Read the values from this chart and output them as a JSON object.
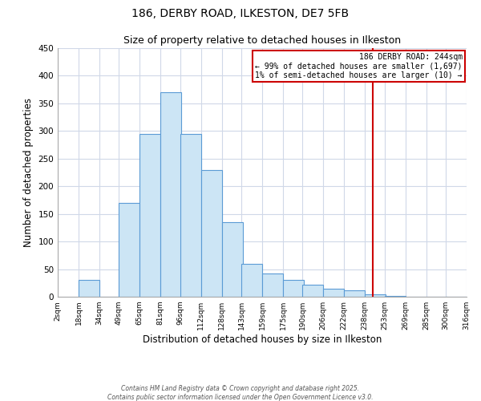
{
  "title": "186, DERBY ROAD, ILKESTON, DE7 5FB",
  "subtitle": "Size of property relative to detached houses in Ilkeston",
  "xlabel": "Distribution of detached houses by size in Ilkeston",
  "ylabel": "Number of detached properties",
  "bar_left_edges": [
    18,
    34,
    49,
    65,
    81,
    96,
    112,
    128,
    143,
    159,
    175,
    190,
    206,
    222,
    238,
    253,
    269,
    285,
    300
  ],
  "bar_heights": [
    30,
    0,
    170,
    295,
    370,
    295,
    230,
    135,
    60,
    42,
    30,
    22,
    14,
    11,
    5,
    1,
    0,
    0,
    0
  ],
  "bin_width": 16,
  "tick_labels": [
    "2sqm",
    "18sqm",
    "34sqm",
    "49sqm",
    "65sqm",
    "81sqm",
    "96sqm",
    "112sqm",
    "128sqm",
    "143sqm",
    "159sqm",
    "175sqm",
    "190sqm",
    "206sqm",
    "222sqm",
    "238sqm",
    "253sqm",
    "269sqm",
    "285sqm",
    "300sqm",
    "316sqm"
  ],
  "tick_positions": [
    2,
    18,
    34,
    49,
    65,
    81,
    96,
    112,
    128,
    143,
    159,
    175,
    190,
    206,
    222,
    238,
    253,
    269,
    285,
    300,
    316
  ],
  "xlim": [
    2,
    316
  ],
  "ylim": [
    0,
    450
  ],
  "yticks": [
    0,
    50,
    100,
    150,
    200,
    250,
    300,
    350,
    400,
    450
  ],
  "bar_color": "#cce5f5",
  "bar_edge_color": "#5b9bd5",
  "vline_x": 244,
  "vline_color": "#cc0000",
  "annotation_title": "186 DERBY ROAD: 244sqm",
  "annotation_line1": "← 99% of detached houses are smaller (1,697)",
  "annotation_line2": "1% of semi-detached houses are larger (10) →",
  "annotation_box_color": "#cc0000",
  "footer_line1": "Contains HM Land Registry data © Crown copyright and database right 2025.",
  "footer_line2": "Contains public sector information licensed under the Open Government Licence v3.0.",
  "background_color": "#ffffff",
  "grid_color": "#d0d8e8"
}
